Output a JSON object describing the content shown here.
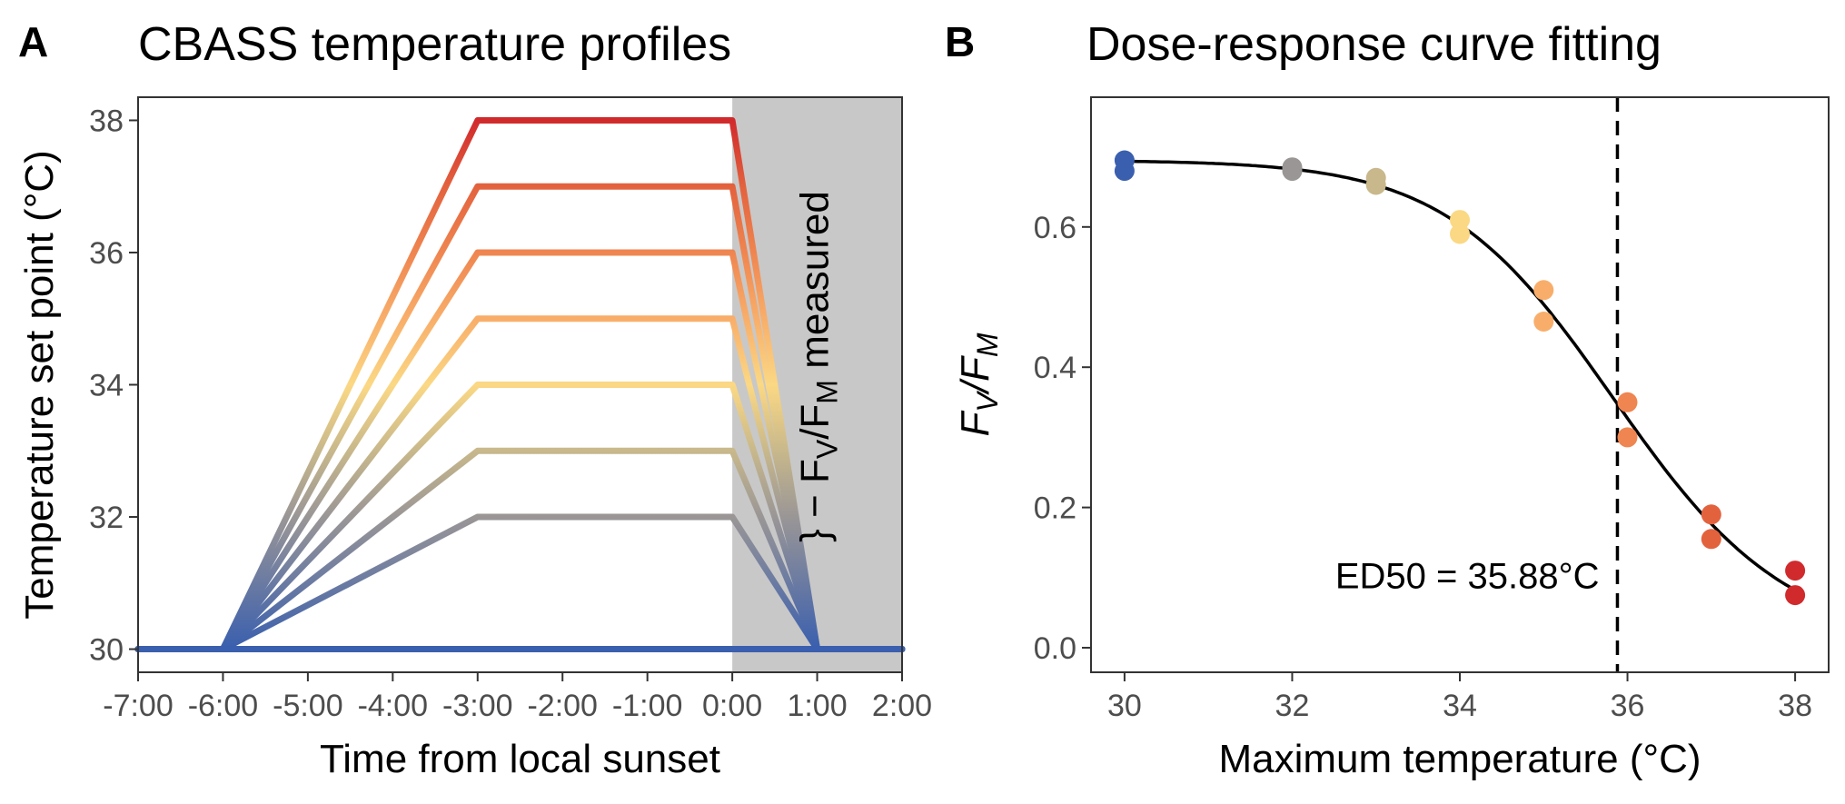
{
  "chart_data": [
    {
      "panel": "A",
      "type": "line",
      "title": "CBASS temperature profiles",
      "xlabel": "Time from local sunset",
      "ylabel": "Temperature set point (°C)",
      "xlim": [
        -7,
        2
      ],
      "ylim": [
        29.65,
        38.35
      ],
      "x_ticks": [
        -7,
        -6,
        -5,
        -4,
        -3,
        -2,
        -1,
        0,
        1,
        2
      ],
      "x_tick_labels": [
        "-7:00",
        "-6:00",
        "-5:00",
        "-4:00",
        "-3:00",
        "-2:00",
        "-1:00",
        "0:00",
        "1:00",
        "2:00"
      ],
      "y_ticks": [
        30,
        32,
        34,
        36,
        38
      ],
      "y_tick_labels": [
        "30",
        "32",
        "34",
        "36",
        "38"
      ],
      "grid": false,
      "shaded_region": {
        "x": [
          0,
          2
        ],
        "color": "#c8c8c8",
        "label_parts": [
          "} − F",
          "V",
          "/F",
          "M",
          " measured"
        ]
      },
      "profile_breakpoints_x": [
        -7,
        -6,
        -3,
        0,
        1,
        2
      ],
      "baseline": 30,
      "series": [
        {
          "max_temp": 30,
          "y": [
            30,
            30,
            30,
            30,
            30,
            30
          ]
        },
        {
          "max_temp": 32,
          "y": [
            30,
            30,
            32,
            32,
            30,
            30
          ]
        },
        {
          "max_temp": 33,
          "y": [
            30,
            30,
            33,
            33,
            30,
            30
          ]
        },
        {
          "max_temp": 34,
          "y": [
            30,
            30,
            34,
            34,
            30,
            30
          ]
        },
        {
          "max_temp": 35,
          "y": [
            30,
            30,
            35,
            35,
            30,
            30
          ]
        },
        {
          "max_temp": 36,
          "y": [
            30,
            30,
            36,
            36,
            30,
            30
          ]
        },
        {
          "max_temp": 37,
          "y": [
            30,
            30,
            37,
            37,
            30,
            30
          ]
        },
        {
          "max_temp": 38,
          "y": [
            30,
            30,
            38,
            38,
            30,
            30
          ]
        }
      ]
    },
    {
      "panel": "B",
      "type": "scatter",
      "title": "Dose-response curve fitting",
      "xlabel": "Maximum temperature (°C)",
      "ylabel_parts": [
        "F",
        "V",
        "/F",
        "M"
      ],
      "xlim": [
        29.6,
        38.4
      ],
      "ylim": [
        -0.035,
        0.785
      ],
      "x_ticks": [
        30,
        32,
        34,
        36,
        38
      ],
      "x_tick_labels": [
        "30",
        "32",
        "34",
        "36",
        "38"
      ],
      "y_ticks": [
        0.0,
        0.2,
        0.4,
        0.6
      ],
      "y_tick_labels": [
        "0.0",
        "0.2",
        "0.4",
        "0.6"
      ],
      "grid": false,
      "points": [
        {
          "x": 30,
          "y": 0.695
        },
        {
          "x": 30,
          "y": 0.68
        },
        {
          "x": 32,
          "y": 0.685
        },
        {
          "x": 32,
          "y": 0.68
        },
        {
          "x": 33,
          "y": 0.67
        },
        {
          "x": 33,
          "y": 0.66
        },
        {
          "x": 34,
          "y": 0.61
        },
        {
          "x": 34,
          "y": 0.59
        },
        {
          "x": 35,
          "y": 0.51
        },
        {
          "x": 35,
          "y": 0.465
        },
        {
          "x": 36,
          "y": 0.35
        },
        {
          "x": 36,
          "y": 0.3
        },
        {
          "x": 37,
          "y": 0.19
        },
        {
          "x": 37,
          "y": 0.155
        },
        {
          "x": 38,
          "y": 0.11
        },
        {
          "x": 38,
          "y": 0.075
        }
      ],
      "fit": {
        "type": "log-logistic",
        "upper": 0.695,
        "lower": 0.0,
        "ed50": 35.88,
        "slope": 35
      },
      "ed50_line_x": 35.88,
      "ed50_label": "ED50 = 35.88°C"
    }
  ],
  "temperature_colors": {
    "30": "#3a5fae",
    "32": "#9a9696",
    "33": "#c8b88b",
    "34": "#fbd884",
    "35": "#f8ae6a",
    "36": "#ef8550",
    "37": "#e3623e",
    "38": "#d12a2c"
  }
}
